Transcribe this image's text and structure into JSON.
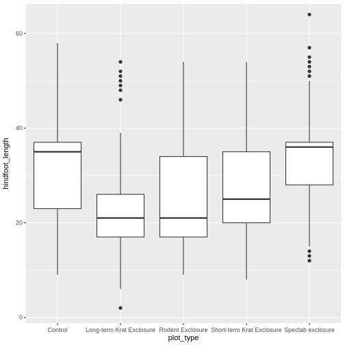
{
  "chart_data": {
    "type": "boxplot",
    "title": "",
    "xlabel": "plot_type",
    "ylabel": "hindfoot_length",
    "ylim": [
      -1.2,
      66.2
    ],
    "y_ticks": [
      0,
      20,
      40,
      60
    ],
    "grid": true,
    "legend": "none",
    "colors": {
      "panel": "#ebebeb",
      "grid_major": "#ffffff",
      "box_fill": "#ffffff",
      "line": "#333333",
      "outlier": "#333333"
    },
    "categories": [
      "Control",
      "Long-term Krat Exclosure",
      "Rodent Exclosure",
      "Short-term Krat Exclosure",
      "Spectab exclosure"
    ],
    "boxes": [
      {
        "category": "Control",
        "whisker_low": 9,
        "q1": 23,
        "median": 35,
        "q3": 37,
        "whisker_high": 58,
        "outliers": []
      },
      {
        "category": "Long-term Krat Exclosure",
        "whisker_low": 6,
        "q1": 17,
        "median": 21,
        "q3": 26,
        "whisker_high": 39,
        "outliers": [
          2,
          46,
          48,
          49,
          50,
          51,
          52,
          54
        ]
      },
      {
        "category": "Rodent Exclosure",
        "whisker_low": 9,
        "q1": 17,
        "median": 21,
        "q3": 34,
        "whisker_high": 54,
        "outliers": []
      },
      {
        "category": "Short-term Krat Exclosure",
        "whisker_low": 8,
        "q1": 20,
        "median": 25,
        "q3": 35,
        "whisker_high": 54,
        "outliers": []
      },
      {
        "category": "Spectab exclosure",
        "whisker_low": 15,
        "q1": 28,
        "median": 36,
        "q3": 37,
        "whisker_high": 50,
        "outliers": [
          12,
          13,
          14,
          51,
          52,
          53,
          54,
          55,
          57,
          64
        ]
      }
    ]
  }
}
